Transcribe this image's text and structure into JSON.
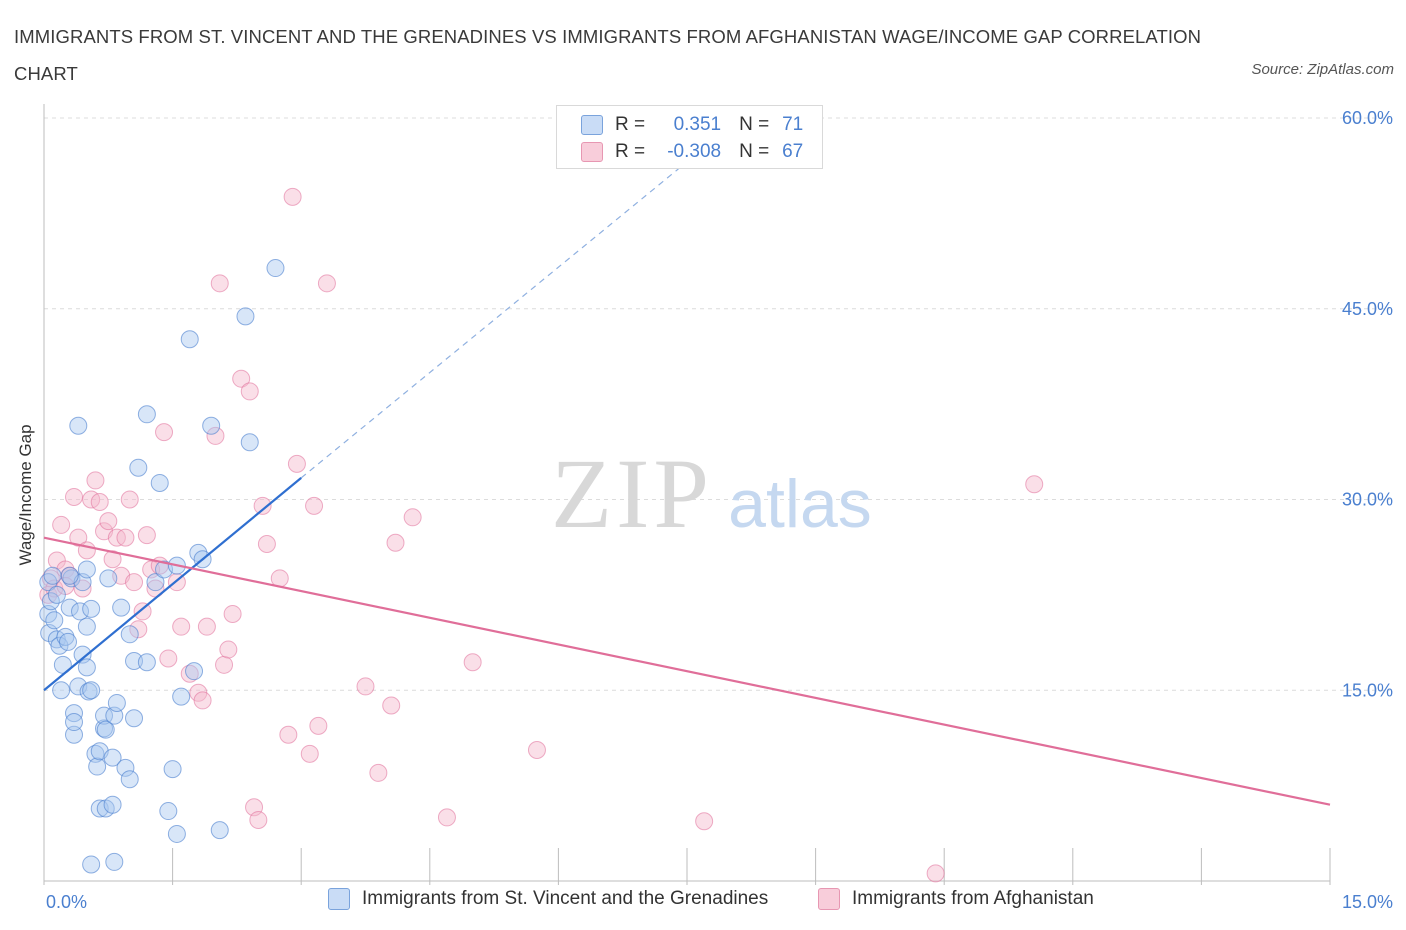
{
  "title": "IMMIGRANTS FROM ST. VINCENT AND THE GRENADINES VS IMMIGRANTS FROM AFGHANISTAN WAGE/INCOME GAP CORRELATION CHART",
  "source": "Source: ZipAtlas.com",
  "watermark": {
    "zip": "ZIP",
    "atlas": "atlas"
  },
  "legend": {
    "r_label": "R =",
    "n_label": "N =",
    "rows": [
      {
        "r": "0.351",
        "n": "71",
        "color": "#a9c8f0"
      },
      {
        "r": "-0.308",
        "n": "67",
        "color": "#f5b8cb"
      }
    ]
  },
  "bottom_legend": [
    "Immigrants from St. Vincent and the Grenadines",
    "Immigrants from Afghanistan"
  ],
  "colors": {
    "blue": "#4a7fcf",
    "blue_fill": "#a9c8f0",
    "pink": "#e06e99",
    "pink_fill": "#f5b8cb",
    "grid": "#dcdcdc"
  },
  "chart_data": {
    "type": "scatter",
    "title": "IMMIGRANTS FROM ST. VINCENT AND THE GRENADINES VS IMMIGRANTS FROM AFGHANISTAN WAGE/INCOME GAP CORRELATION CHART",
    "xlabel": "",
    "ylabel": "Wage/Income Gap",
    "xlim": [
      0,
      15
    ],
    "ylim": [
      0,
      60
    ],
    "x_ticks": [
      "0.0%",
      "15.0%"
    ],
    "y_ticks": [
      "15.0%",
      "30.0%",
      "45.0%",
      "60.0%"
    ],
    "y_tick_values": [
      15,
      30,
      45,
      60
    ],
    "grid": true,
    "legend_position": "top-center",
    "series": [
      {
        "name": "Immigrants from St. Vincent and the Grenadines",
        "R": 0.351,
        "N": 71,
        "trend": {
          "x": [
            0.0,
            3.0
          ],
          "y": [
            15.0,
            31.7
          ],
          "extended_to": [
            7.4,
            56.0
          ]
        },
        "points": [
          [
            0.05,
            23.5
          ],
          [
            0.05,
            21.0
          ],
          [
            0.06,
            19.5
          ],
          [
            0.08,
            22.0
          ],
          [
            0.1,
            24.0
          ],
          [
            0.12,
            20.5
          ],
          [
            0.15,
            19.0
          ],
          [
            0.18,
            18.5
          ],
          [
            0.2,
            15.0
          ],
          [
            0.22,
            17.0
          ],
          [
            0.25,
            19.2
          ],
          [
            0.28,
            18.8
          ],
          [
            0.3,
            21.5
          ],
          [
            0.32,
            23.8
          ],
          [
            0.35,
            13.2
          ],
          [
            0.35,
            11.5
          ],
          [
            0.35,
            12.5
          ],
          [
            0.4,
            15.3
          ],
          [
            0.4,
            35.8
          ],
          [
            0.42,
            21.2
          ],
          [
            0.45,
            23.5
          ],
          [
            0.45,
            17.8
          ],
          [
            0.5,
            16.8
          ],
          [
            0.5,
            24.5
          ],
          [
            0.52,
            14.9
          ],
          [
            0.55,
            15.0
          ],
          [
            0.55,
            21.4
          ],
          [
            0.5,
            20.0
          ],
          [
            0.6,
            10.0
          ],
          [
            0.62,
            9.0
          ],
          [
            0.65,
            10.2
          ],
          [
            0.65,
            5.7
          ],
          [
            0.7,
            12.0
          ],
          [
            0.7,
            13.0
          ],
          [
            0.72,
            11.9
          ],
          [
            0.72,
            5.7
          ],
          [
            0.75,
            23.8
          ],
          [
            0.8,
            6.0
          ],
          [
            0.8,
            9.7
          ],
          [
            0.82,
            13.0
          ],
          [
            0.85,
            14.0
          ],
          [
            0.55,
            1.3
          ],
          [
            0.82,
            1.5
          ],
          [
            0.9,
            21.5
          ],
          [
            0.95,
            8.9
          ],
          [
            1.0,
            8.0
          ],
          [
            1.0,
            19.4
          ],
          [
            1.05,
            12.8
          ],
          [
            1.05,
            17.3
          ],
          [
            1.1,
            32.5
          ],
          [
            1.2,
            17.2
          ],
          [
            1.2,
            36.7
          ],
          [
            1.3,
            23.5
          ],
          [
            1.35,
            31.3
          ],
          [
            1.4,
            24.5
          ],
          [
            1.45,
            5.5
          ],
          [
            1.5,
            8.8
          ],
          [
            1.55,
            3.7
          ],
          [
            1.55,
            24.8
          ],
          [
            1.6,
            14.5
          ],
          [
            1.7,
            42.6
          ],
          [
            1.75,
            16.5
          ],
          [
            1.8,
            25.8
          ],
          [
            1.85,
            25.3
          ],
          [
            1.95,
            35.8
          ],
          [
            2.05,
            4.0
          ],
          [
            2.35,
            44.4
          ],
          [
            2.4,
            34.5
          ],
          [
            2.7,
            48.2
          ],
          [
            0.15,
            22.5
          ],
          [
            0.3,
            24.0
          ]
        ]
      },
      {
        "name": "Immigrants from Afghanistan",
        "R": -0.308,
        "N": 67,
        "trend": {
          "x": [
            0.0,
            15.0
          ],
          "y": [
            27.0,
            6.0
          ]
        },
        "points": [
          [
            0.05,
            22.5
          ],
          [
            0.08,
            23.8
          ],
          [
            0.12,
            23.0
          ],
          [
            0.15,
            25.2
          ],
          [
            0.2,
            28.0
          ],
          [
            0.25,
            24.5
          ],
          [
            0.3,
            24.0
          ],
          [
            0.35,
            30.2
          ],
          [
            0.4,
            27.0
          ],
          [
            0.45,
            23.0
          ],
          [
            0.5,
            26.0
          ],
          [
            0.55,
            30.0
          ],
          [
            0.6,
            31.5
          ],
          [
            0.65,
            29.8
          ],
          [
            0.7,
            27.5
          ],
          [
            0.75,
            28.3
          ],
          [
            0.8,
            25.3
          ],
          [
            0.85,
            27.0
          ],
          [
            0.9,
            24.0
          ],
          [
            0.95,
            27.0
          ],
          [
            1.0,
            30.0
          ],
          [
            1.05,
            23.5
          ],
          [
            1.1,
            19.8
          ],
          [
            1.15,
            21.2
          ],
          [
            1.2,
            27.2
          ],
          [
            1.25,
            24.5
          ],
          [
            1.3,
            23.0
          ],
          [
            1.35,
            24.8
          ],
          [
            1.4,
            35.3
          ],
          [
            1.45,
            17.5
          ],
          [
            1.55,
            23.5
          ],
          [
            1.6,
            20.0
          ],
          [
            1.7,
            16.3
          ],
          [
            1.8,
            14.8
          ],
          [
            1.85,
            14.2
          ],
          [
            1.9,
            20.0
          ],
          [
            2.0,
            35.0
          ],
          [
            2.05,
            47.0
          ],
          [
            2.1,
            17.0
          ],
          [
            2.15,
            18.2
          ],
          [
            2.2,
            21.0
          ],
          [
            2.3,
            39.5
          ],
          [
            2.4,
            38.5
          ],
          [
            2.45,
            5.8
          ],
          [
            2.5,
            4.8
          ],
          [
            2.55,
            29.5
          ],
          [
            2.6,
            26.5
          ],
          [
            2.75,
            23.8
          ],
          [
            2.85,
            11.5
          ],
          [
            2.9,
            53.8
          ],
          [
            2.95,
            32.8
          ],
          [
            3.1,
            10.0
          ],
          [
            3.15,
            29.5
          ],
          [
            3.2,
            12.2
          ],
          [
            3.3,
            47.0
          ],
          [
            3.75,
            15.3
          ],
          [
            3.9,
            8.5
          ],
          [
            4.05,
            13.8
          ],
          [
            4.1,
            26.6
          ],
          [
            4.3,
            28.6
          ],
          [
            4.7,
            5.0
          ],
          [
            5.0,
            17.2
          ],
          [
            5.75,
            10.3
          ],
          [
            7.7,
            4.7
          ],
          [
            10.4,
            0.6
          ],
          [
            11.55,
            31.2
          ],
          [
            0.25,
            23.2
          ]
        ]
      }
    ]
  }
}
